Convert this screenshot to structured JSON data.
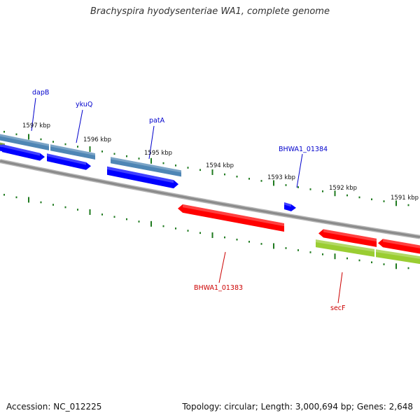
{
  "title": "Brachyspira hyodysenteriae WA1, complete genome",
  "footer": {
    "accession": "Accession: NC_012225",
    "summary": "Topology: circular; Length: 3,000,694 bp; Genes: 2,648"
  },
  "scale_labels": [
    "1597 kbp",
    "1596 kbp",
    "1595 kbp",
    "1594 kbp",
    "1593 kbp",
    "1592 kbp",
    "1591 kbp"
  ],
  "gene_labels": [
    {
      "name": "dapB",
      "color": "#0000cc"
    },
    {
      "name": "ykuQ",
      "color": "#0000cc"
    },
    {
      "name": "patA",
      "color": "#0000cc"
    },
    {
      "name": "BHWA1_01384",
      "color": "#0000cc"
    },
    {
      "name": "BHWA1_01383",
      "color": "#cc0000"
    },
    {
      "name": "secF",
      "color": "#cc0000"
    }
  ],
  "colors": {
    "backbone": "#8a8a8a",
    "forward_cds": "#0000ff",
    "forward_gene": "#4f86b5",
    "reverse_cds": "#ff0000",
    "reverse_gene": "#9acd32",
    "tick": "#1f7a1f"
  }
}
